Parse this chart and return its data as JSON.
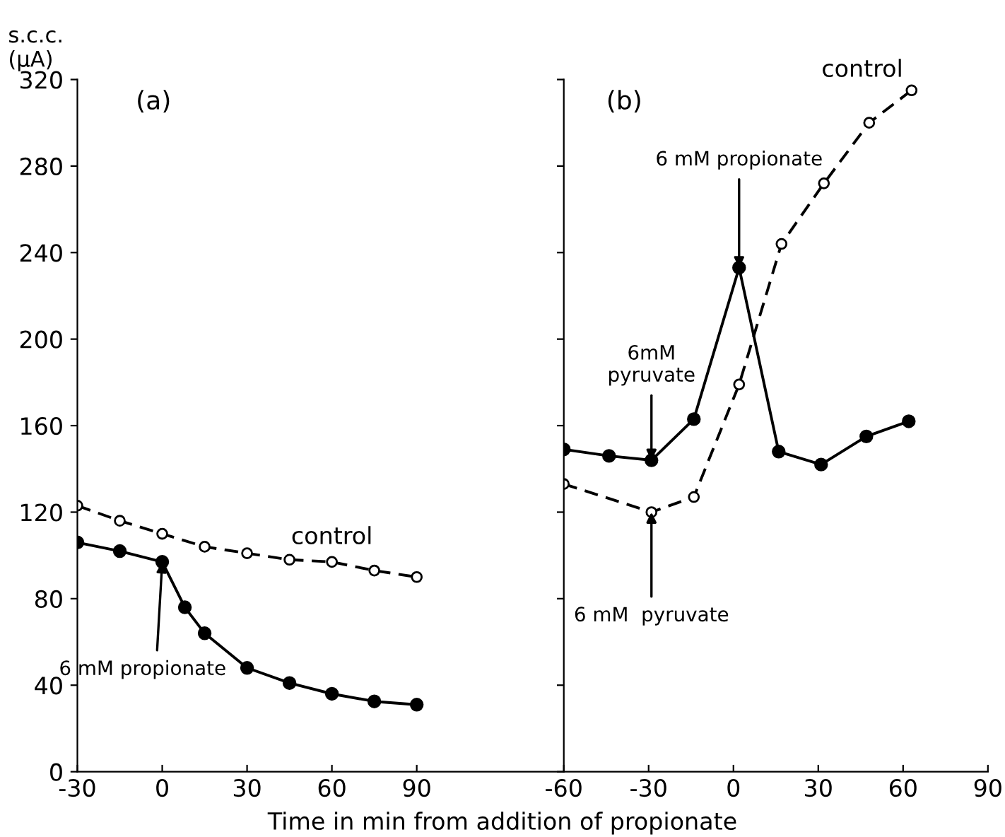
{
  "chart_data": [
    {
      "type": "line",
      "title": "(a)",
      "ylabel": "s.c.c.\n(μA)",
      "xlabel": "Time in min from addition of propionate",
      "xlim": [
        -30,
        142
      ],
      "xticks": [
        -30,
        0,
        30,
        60,
        90
      ],
      "ylim": [
        0,
        320
      ],
      "yticks": [
        0,
        40,
        80,
        120,
        160,
        200,
        240,
        280,
        320
      ],
      "marker": "circle",
      "grid": false,
      "legend": false,
      "series": [
        {
          "name": "control",
          "color": "#000000",
          "line_style": "dashed",
          "x": [
            -30,
            -15,
            0,
            15,
            30,
            45,
            60,
            75,
            90
          ],
          "values": [
            123,
            116,
            110,
            104,
            101,
            98,
            97,
            93,
            90
          ]
        },
        {
          "color": "#000000",
          "line_style": "solid",
          "x": [
            -30,
            -15,
            0,
            8,
            15,
            30,
            45,
            60,
            75,
            90
          ],
          "values": [
            106,
            102,
            97,
            76,
            64,
            48,
            41,
            36,
            32.5,
            31
          ]
        }
      ],
      "annotations": [
        {
          "text": "6 mM propionate",
          "x": 0,
          "y": 97
        }
      ]
    },
    {
      "type": "line",
      "title": "(b)",
      "tick_labels": "x",
      "xlim": [
        -60,
        90
      ],
      "xticks": [
        -60,
        -30,
        0,
        30,
        60,
        90
      ],
      "ylim": [
        0,
        320
      ],
      "yticks": [
        0,
        40,
        80,
        120,
        160,
        200,
        240,
        280,
        320
      ],
      "marker": "circle",
      "grid": false,
      "legend": false,
      "series": [
        {
          "name": "control",
          "color": "#000000",
          "line_style": "dashed",
          "x": [
            -60,
            -29,
            -14,
            2,
            17,
            32,
            48,
            63
          ],
          "values": [
            133,
            120,
            127,
            179,
            244,
            272,
            300,
            315
          ]
        },
        {
          "color": "#000000",
          "line_style": "solid",
          "x": [
            -60,
            -44,
            -29,
            -14,
            2,
            16,
            31,
            47,
            62
          ],
          "values": [
            149,
            146,
            144,
            163,
            233,
            148,
            142,
            155,
            162
          ]
        }
      ],
      "annotations": [
        {
          "text": "6 mM propionate",
          "x": 2,
          "y": 233
        },
        {
          "text": "6mM\npyruvate",
          "x": -29,
          "y": 144
        },
        {
          "text": "6 mM  pyruvate",
          "x": -29,
          "y": 120
        }
      ]
    }
  ]
}
